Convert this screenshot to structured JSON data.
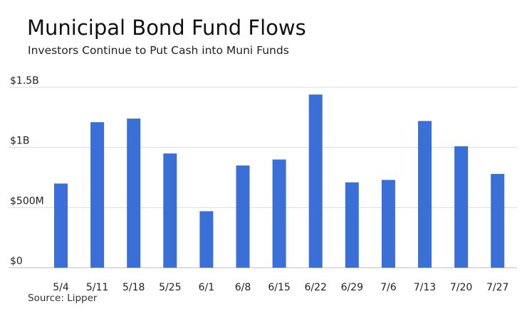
{
  "chart_data": {
    "type": "bar",
    "title": "Municipal Bond Fund Flows",
    "subtitle": "Investors Continue to Put Cash into Muni Funds",
    "source": "Source: Lipper",
    "categories": [
      "5/4",
      "5/11",
      "5/18",
      "5/25",
      "6/1",
      "6/8",
      "6/15",
      "6/22",
      "6/29",
      "7/6",
      "7/13",
      "7/20",
      "7/27"
    ],
    "values": [
      0.7,
      1.21,
      1.24,
      0.95,
      0.47,
      0.85,
      0.9,
      1.44,
      0.71,
      0.73,
      1.22,
      1.01,
      0.78
    ],
    "unit": "billion USD",
    "ylim": [
      0,
      1.5
    ],
    "yticks": [
      {
        "value": 0,
        "label": "$0"
      },
      {
        "value": 0.5,
        "label": "$500M"
      },
      {
        "value": 1,
        "label": "$1B"
      },
      {
        "value": 1.5,
        "label": "$1.5B"
      }
    ],
    "xlabel": "",
    "ylabel": "",
    "grid": true,
    "bar_color": "#3a6fd8",
    "grid_color": "#d9d9d9"
  }
}
